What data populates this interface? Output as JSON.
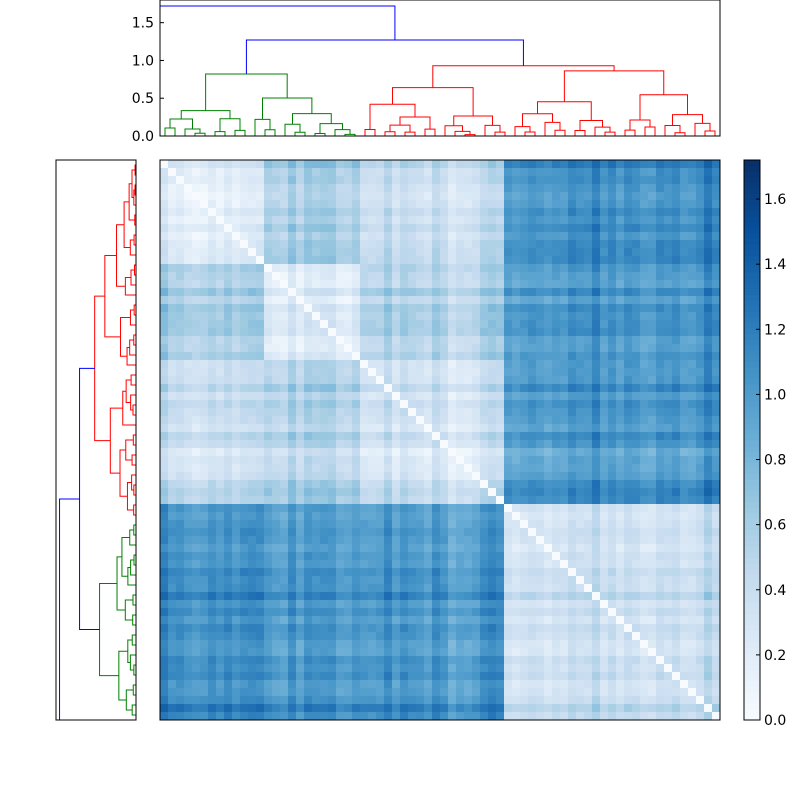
{
  "chart_data": [
    {
      "type": "dendrogram",
      "orientation": "top",
      "ylim": [
        0,
        1.8
      ],
      "yticks": [
        "0.0",
        "0.5",
        "1.0",
        "1.5"
      ],
      "colors": {
        "link_above": "#0000ff",
        "cluster_1": "#008000",
        "cluster_2": "#ff0000"
      },
      "root_height": 1.72,
      "major_merges": [
        {
          "clusters": [
            "root"
          ],
          "height": 1.72
        },
        {
          "clusters": [
            "green",
            "red"
          ],
          "height": 1.27
        },
        {
          "clusters": [
            "red-left",
            "red-right"
          ],
          "height": 0.93
        },
        {
          "clusters": [
            "green-left",
            "green-right"
          ],
          "height": 0.82
        }
      ]
    },
    {
      "type": "dendrogram",
      "orientation": "left",
      "note": "same linkage as top dendrogram, rotated",
      "colors": {
        "link_above": "#0000ff",
        "cluster_1": "#008000",
        "cluster_2": "#ff0000"
      }
    },
    {
      "type": "heatmap",
      "colormap": "Blues",
      "vmin": 0.0,
      "vmax": 1.72,
      "diagonal": 0.0,
      "block_order": [
        "green-A",
        "green-B",
        "red-A",
        "red-B"
      ],
      "block_mean_distance": [
        [
          0.15,
          0.55,
          0.3,
          1.05
        ],
        [
          0.55,
          0.2,
          0.45,
          1.0
        ],
        [
          0.3,
          0.45,
          0.2,
          0.95
        ],
        [
          1.05,
          1.0,
          0.95,
          0.35
        ]
      ]
    },
    {
      "type": "colorbar",
      "colormap": "Blues",
      "vmin": 0.0,
      "vmax": 1.72,
      "ticks": [
        "0.0",
        "0.2",
        "0.4",
        "0.6",
        "0.8",
        "1.0",
        "1.2",
        "1.4",
        "1.6"
      ]
    }
  ]
}
